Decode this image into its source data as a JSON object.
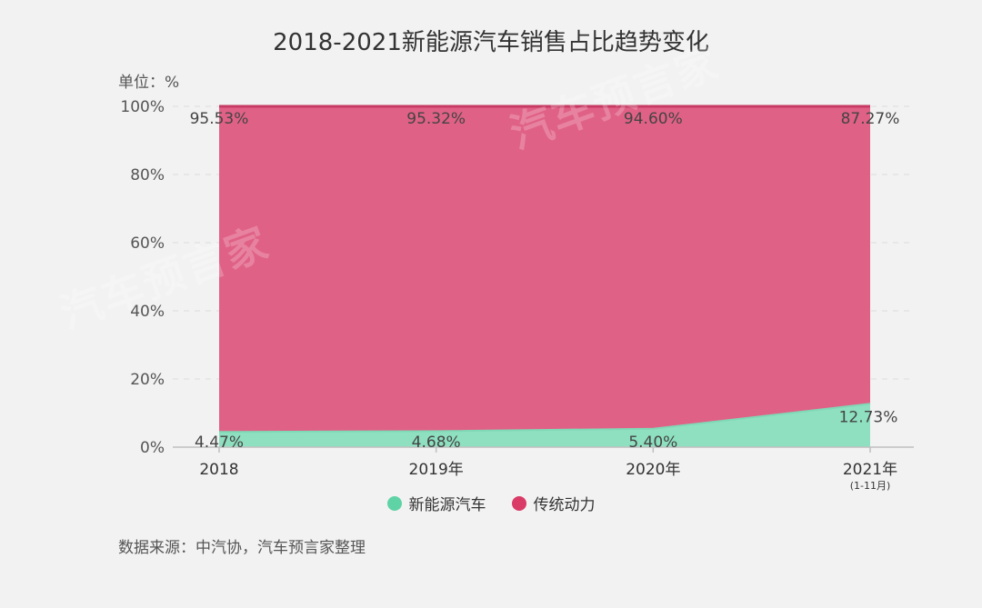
{
  "header": {
    "title": "2018-2021新能源汽车销售占比趋势变化",
    "unit": "单位：%"
  },
  "footer": {
    "source": "数据来源：中汽协，汽车预言家整理"
  },
  "watermark": "汽车预言家",
  "colors": {
    "nev": "#8ee0c1",
    "nev_legend": "#5fd3a5",
    "traditional": "#e06186",
    "traditional_legend": "#d93a66",
    "traditional_line": "#c73a63"
  },
  "chart_data": {
    "type": "area",
    "stacked": true,
    "categories": [
      "2018",
      "2019年",
      "2020年",
      "2021年"
    ],
    "category_notes": [
      "",
      "",
      "",
      "(1-11月)"
    ],
    "ylim": [
      0,
      100
    ],
    "yticks": [
      "0%",
      "20%",
      "40%",
      "60%",
      "80%",
      "100%"
    ],
    "grid": true,
    "legend_position": "bottom",
    "series": [
      {
        "name": "新能源汽车",
        "values": [
          4.47,
          4.68,
          5.4,
          12.73
        ],
        "labels": [
          "4.47%",
          "4.68%",
          "5.40%",
          "12.73%"
        ]
      },
      {
        "name": "传统动力",
        "values": [
          95.53,
          95.32,
          94.6,
          87.27
        ],
        "labels": [
          "95.53%",
          "95.32%",
          "94.60%",
          "87.27%"
        ]
      }
    ]
  }
}
